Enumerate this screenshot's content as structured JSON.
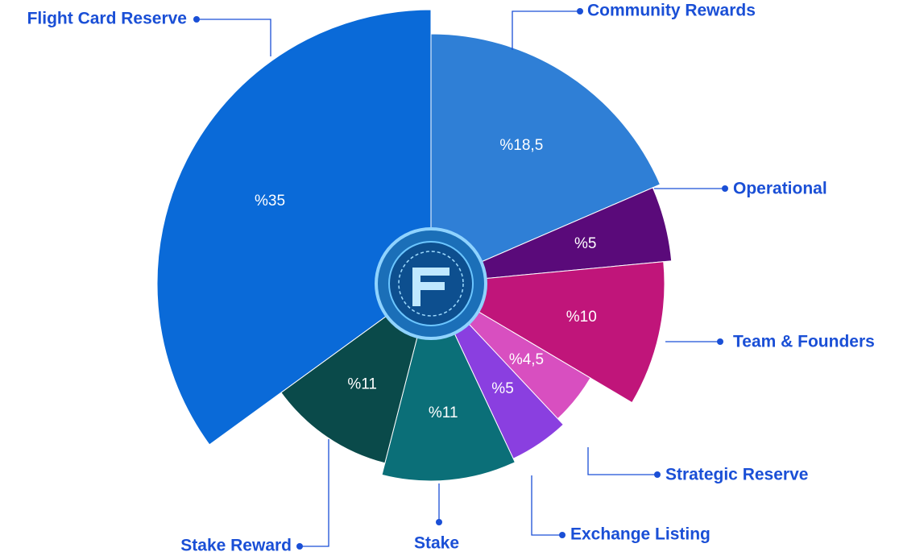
{
  "chart_data": {
    "type": "pie",
    "categories": [
      "Community Rewards",
      "Operational",
      "Team & Founders",
      "Strategic Reserve",
      "Exchange Listing",
      "Stake",
      "Stake Reward",
      "Flight Card Reserve"
    ],
    "values": [
      18.5,
      5,
      10,
      4.5,
      5,
      11,
      11,
      35
    ],
    "value_labels": [
      "%18,5",
      "%5",
      "%10",
      "%4,5",
      "%5",
      "%11",
      "%11",
      "%35"
    ],
    "colors": [
      "#2f7fd6",
      "#5a0a7a",
      "#c0157a",
      "#d84fc0",
      "#8a3fe0",
      "#0b6f78",
      "#0a4a4a",
      "#0a6ad8"
    ]
  }
}
